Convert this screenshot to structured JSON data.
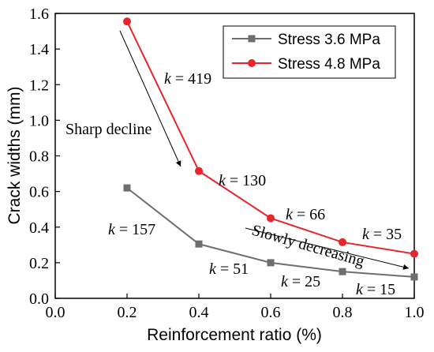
{
  "chart_data": {
    "type": "line",
    "xlabel": "Reinforcement ratio (%)",
    "ylabel": "Crack widths (mm)",
    "xlim": [
      0.0,
      1.0
    ],
    "ylim": [
      0.0,
      1.6
    ],
    "xticks": [
      "0.0",
      "0.2",
      "0.4",
      "0.6",
      "0.8",
      "1.0"
    ],
    "yticks": [
      "0.0",
      "0.2",
      "0.4",
      "0.6",
      "0.8",
      "1.0",
      "1.2",
      "1.4",
      "1.6"
    ],
    "legend_position": "top-right",
    "grid": false,
    "series": [
      {
        "name": "Stress 3.6 MPa",
        "color": "#6e6e6e",
        "marker": "square",
        "x": [
          0.2,
          0.4,
          0.6,
          0.8,
          1.0
        ],
        "y": [
          0.62,
          0.305,
          0.2,
          0.15,
          0.12
        ]
      },
      {
        "name": "Stress 4.8 MPa",
        "color": "#e8242c",
        "marker": "circle",
        "x": [
          0.2,
          0.4,
          0.6,
          0.8,
          1.0
        ],
        "y": [
          1.555,
          0.715,
          0.45,
          0.315,
          0.25
        ]
      }
    ],
    "annotations": {
      "slopes_48": [
        {
          "k": "k",
          "rest": " = 419"
        },
        {
          "k": "k",
          "rest": " = 130"
        },
        {
          "k": "k",
          "rest": " = 66"
        },
        {
          "k": "k",
          "rest": " = 35"
        }
      ],
      "slopes_36": [
        {
          "k": "k",
          "rest": " = 157"
        },
        {
          "k": "k",
          "rest": " = 51"
        },
        {
          "k": "k",
          "rest": " = 25"
        },
        {
          "k": "k",
          "rest": " = 15"
        }
      ],
      "sharp_decline": "Sharp decline",
      "slowly_decreasing": "Slowly decreasing"
    }
  }
}
